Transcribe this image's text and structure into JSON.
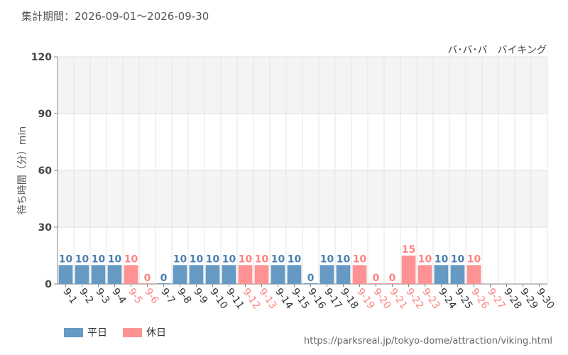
{
  "header": {
    "period": "集計期間：2026-09-01～2026-09-30",
    "ride_name": "バ･バ･バ　バイキング"
  },
  "footer": {
    "url": "https://parksreal.jp/tokyo-dome/attraction/viking.html"
  },
  "legend": {
    "weekday": "平日",
    "holiday": "休日"
  },
  "colors": {
    "weekday": "#6699c4",
    "holiday": "#ff9393",
    "weekday_label": "#4a7fb0",
    "holiday_label": "#ff8080",
    "band": "#f4f4f4"
  },
  "chart_data": {
    "type": "bar",
    "ylabel": "待ち時間（分）min",
    "ylim": [
      0,
      120
    ],
    "yticks": [
      0,
      30,
      60,
      90,
      120
    ],
    "categories": [
      "9-1",
      "9-2",
      "9-3",
      "9-4",
      "9-5",
      "9-6",
      "9-7",
      "9-8",
      "9-9",
      "9-10",
      "9-11",
      "9-12",
      "9-13",
      "9-14",
      "9-15",
      "9-16",
      "9-17",
      "9-18",
      "9-19",
      "9-20",
      "9-21",
      "9-22",
      "9-23",
      "9-24",
      "9-25",
      "9-26",
      "9-27",
      "9-28",
      "9-29",
      "9-30"
    ],
    "values": [
      10,
      10,
      10,
      10,
      10,
      0,
      0,
      10,
      10,
      10,
      10,
      10,
      10,
      10,
      10,
      0,
      10,
      10,
      10,
      0,
      0,
      15,
      10,
      10,
      10,
      10,
      null,
      null,
      null,
      null
    ],
    "day_type": [
      "weekday",
      "weekday",
      "weekday",
      "weekday",
      "holiday",
      "holiday",
      "weekday",
      "weekday",
      "weekday",
      "weekday",
      "weekday",
      "holiday",
      "holiday",
      "weekday",
      "weekday",
      "weekday",
      "weekday",
      "weekday",
      "holiday",
      "holiday",
      "holiday",
      "holiday",
      "holiday",
      "weekday",
      "weekday",
      "holiday",
      "holiday",
      "weekday",
      "weekday",
      "weekday"
    ]
  }
}
